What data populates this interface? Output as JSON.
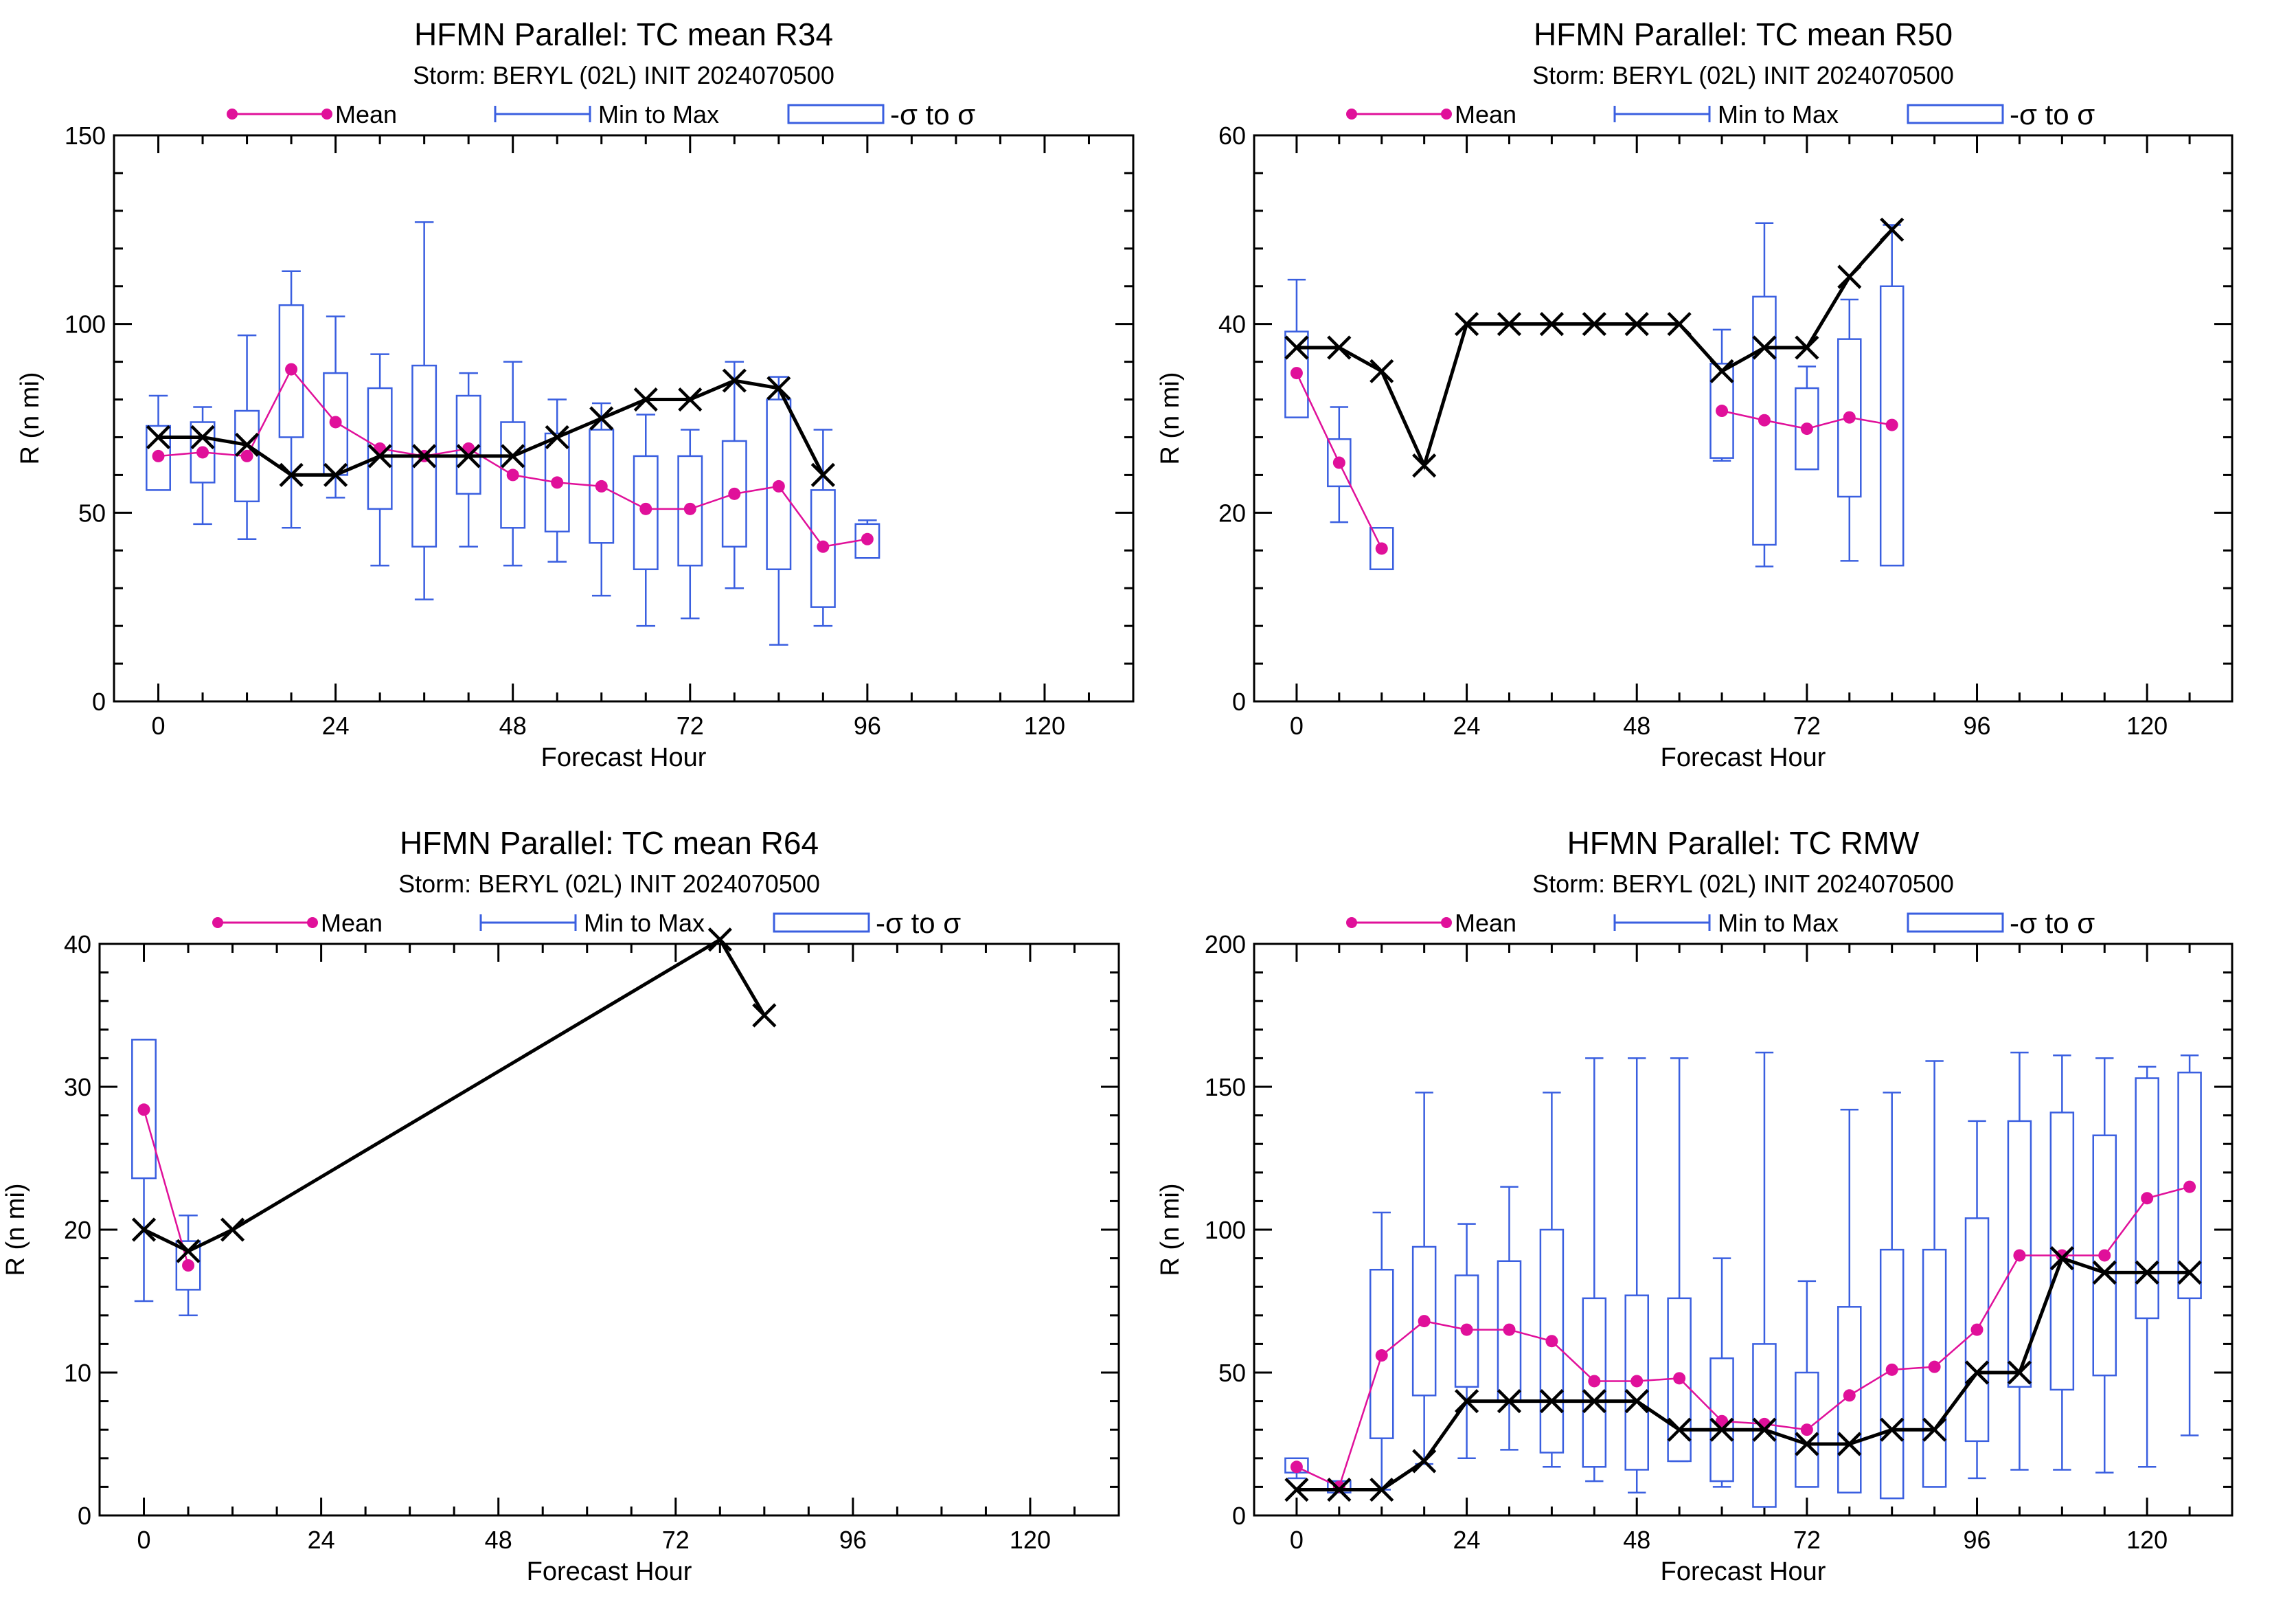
{
  "legend": {
    "mean": "Mean",
    "range": "Min to Max",
    "sigma": "-σ to σ"
  },
  "colors": {
    "mean": "#e0109a",
    "range": "#3a5fe0",
    "track": "#000000",
    "axis": "#000000"
  },
  "chart_data": [
    {
      "type": "box",
      "title": "HFMN Parallel: TC mean R34",
      "subtitle": "Storm: BERYL (02L) INIT 2024070500",
      "xlabel": "Forecast Hour",
      "ylabel": "R (n mi)",
      "xlim": [
        -6,
        132
      ],
      "ylim": [
        0,
        150
      ],
      "xticks": [
        0,
        24,
        48,
        72,
        96,
        120
      ],
      "yticks": [
        0,
        50,
        100,
        150
      ],
      "mean": {
        "x": [
          0,
          6,
          12,
          18,
          24,
          30,
          36,
          42,
          48,
          54,
          60,
          66,
          72,
          78,
          84,
          90,
          96
        ],
        "y": [
          65,
          66,
          65,
          88,
          74,
          67,
          65,
          67,
          60,
          58,
          57,
          51,
          51,
          55,
          57,
          41,
          43
        ]
      },
      "boxes": [
        {
          "x": 0,
          "min": 58,
          "max": 81,
          "lo": 56,
          "hi": 73
        },
        {
          "x": 6,
          "min": 47,
          "max": 78,
          "lo": 58,
          "hi": 74
        },
        {
          "x": 12,
          "min": 43,
          "max": 97,
          "lo": 53,
          "hi": 77
        },
        {
          "x": 18,
          "min": 46,
          "max": 114,
          "lo": 70,
          "hi": 105
        },
        {
          "x": 24,
          "min": 54,
          "max": 102,
          "lo": 60,
          "hi": 87
        },
        {
          "x": 30,
          "min": 36,
          "max": 92,
          "lo": 51,
          "hi": 83
        },
        {
          "x": 36,
          "min": 27,
          "max": 127,
          "lo": 41,
          "hi": 89
        },
        {
          "x": 42,
          "min": 41,
          "max": 87,
          "lo": 55,
          "hi": 81
        },
        {
          "x": 48,
          "min": 36,
          "max": 90,
          "lo": 46,
          "hi": 74
        },
        {
          "x": 54,
          "min": 37,
          "max": 80,
          "lo": 45,
          "hi": 71
        },
        {
          "x": 60,
          "min": 28,
          "max": 79,
          "lo": 42,
          "hi": 72
        },
        {
          "x": 66,
          "min": 20,
          "max": 76,
          "lo": 35,
          "hi": 65
        },
        {
          "x": 72,
          "min": 22,
          "max": 72,
          "lo": 36,
          "hi": 65
        },
        {
          "x": 78,
          "min": 30,
          "max": 90,
          "lo": 41,
          "hi": 69
        },
        {
          "x": 84,
          "min": 15,
          "max": 86,
          "lo": 35,
          "hi": 80
        },
        {
          "x": 90,
          "min": 20,
          "max": 72,
          "lo": 25,
          "hi": 56
        },
        {
          "x": 96,
          "min": 38,
          "max": 48,
          "lo": 38,
          "hi": 47
        }
      ],
      "track": {
        "x": [
          0,
          6,
          12,
          18,
          24,
          30,
          36,
          42,
          48,
          54,
          60,
          66,
          72,
          78,
          84,
          90
        ],
        "y": [
          70,
          70,
          68,
          60,
          60,
          65,
          65,
          65,
          65,
          70,
          75,
          80,
          80,
          85,
          83,
          60
        ]
      }
    },
    {
      "type": "box",
      "title": "HFMN Parallel: TC mean R50",
      "subtitle": "Storm: BERYL (02L) INIT 2024070500",
      "xlabel": "Forecast Hour",
      "ylabel": "R (n mi)",
      "xlim": [
        -6,
        132
      ],
      "ylim": [
        0,
        60
      ],
      "xticks": [
        0,
        24,
        48,
        72,
        96,
        120
      ],
      "yticks": [
        0,
        20,
        40,
        60
      ],
      "mean": {
        "x": [
          0,
          6,
          12
        ],
        "y": [
          34.8,
          25.3,
          16.2
        ],
        "x2": [
          60,
          66,
          72,
          78,
          84
        ],
        "y2": [
          30.8,
          29.8,
          28.9,
          30.1,
          29.3
        ]
      },
      "boxes": [
        {
          "x": 0,
          "min": 31,
          "max": 44.7,
          "lo": 30.1,
          "hi": 39.2
        },
        {
          "x": 6,
          "min": 19,
          "max": 31.2,
          "lo": 22.8,
          "hi": 27.8
        },
        {
          "x": 12,
          "min": 14.2,
          "max": 18.4,
          "lo": 14.0,
          "hi": 18.4
        },
        {
          "x": 60,
          "min": 25.5,
          "max": 39.4,
          "lo": 25.8,
          "hi": 35.8
        },
        {
          "x": 66,
          "min": 14.3,
          "max": 50.7,
          "lo": 16.6,
          "hi": 42.9
        },
        {
          "x": 72,
          "min": 24.6,
          "max": 35.5,
          "lo": 24.6,
          "hi": 33.2
        },
        {
          "x": 78,
          "min": 14.9,
          "max": 42.6,
          "lo": 21.7,
          "hi": 38.4
        },
        {
          "x": 84,
          "min": 19.2,
          "max": 50.5,
          "lo": 14.4,
          "hi": 44.0
        }
      ],
      "track": {
        "x": [
          0,
          6,
          12,
          18,
          24,
          30,
          36,
          42,
          48,
          54,
          60,
          66,
          72,
          78,
          84
        ],
        "y": [
          37.5,
          37.5,
          35,
          25,
          40,
          40,
          40,
          40,
          40,
          40,
          35,
          37.5,
          37.5,
          45,
          50
        ]
      }
    },
    {
      "type": "box",
      "title": "HFMN Parallel: TC mean R64",
      "subtitle": "Storm: BERYL (02L) INIT 2024070500",
      "xlabel": "Forecast Hour",
      "ylabel": "R (n mi)",
      "xlim": [
        -6,
        132
      ],
      "ylim": [
        0,
        40
      ],
      "xticks": [
        0,
        24,
        48,
        72,
        96,
        120
      ],
      "yticks": [
        0,
        10,
        20,
        30,
        40
      ],
      "mean": {
        "x": [
          0,
          6
        ],
        "y": [
          28.4,
          17.5
        ]
      },
      "boxes": [
        {
          "x": 0,
          "min": 15,
          "max": 33.3,
          "lo": 23.6,
          "hi": 33.3
        },
        {
          "x": 6,
          "min": 14,
          "max": 21,
          "lo": 15.8,
          "hi": 19.2
        }
      ],
      "track": {
        "x": [
          0,
          6,
          12,
          78,
          84
        ],
        "y": [
          20,
          18.5,
          20,
          40.3,
          35
        ]
      }
    },
    {
      "type": "box",
      "title": "HFMN Parallel: TC RMW",
      "subtitle": "Storm: BERYL (02L) INIT 2024070500",
      "xlabel": "Forecast Hour",
      "ylabel": "R (n mi)",
      "xlim": [
        -6,
        132
      ],
      "ylim": [
        0,
        200
      ],
      "xticks": [
        0,
        24,
        48,
        72,
        96,
        120
      ],
      "yticks": [
        0,
        50,
        100,
        150,
        200
      ],
      "mean": {
        "x": [
          0,
          6,
          12,
          18,
          24,
          30,
          36,
          42,
          48,
          54,
          60,
          66,
          72,
          78,
          84,
          90,
          96,
          102,
          108,
          114,
          120,
          126
        ],
        "y": [
          17,
          10,
          56,
          68,
          65,
          65,
          61,
          47,
          47,
          48,
          33,
          32,
          30,
          42,
          51,
          52,
          65,
          91,
          91,
          91,
          111,
          115
        ]
      },
      "boxes": [
        {
          "x": 0,
          "min": 13,
          "max": 20,
          "lo": 15,
          "hi": 20
        },
        {
          "x": 6,
          "min": 8,
          "max": 12,
          "lo": 8,
          "hi": 12
        },
        {
          "x": 12,
          "min": 9,
          "max": 106,
          "lo": 27,
          "hi": 86
        },
        {
          "x": 18,
          "min": 18,
          "max": 148,
          "lo": 42,
          "hi": 94
        },
        {
          "x": 24,
          "min": 20,
          "max": 102,
          "lo": 45,
          "hi": 84
        },
        {
          "x": 30,
          "min": 23,
          "max": 115,
          "lo": 40,
          "hi": 89
        },
        {
          "x": 36,
          "min": 17,
          "max": 148,
          "lo": 22,
          "hi": 100
        },
        {
          "x": 42,
          "min": 12,
          "max": 160,
          "lo": 17,
          "hi": 76
        },
        {
          "x": 48,
          "min": 8,
          "max": 160,
          "lo": 16,
          "hi": 77
        },
        {
          "x": 54,
          "min": 19,
          "max": 160,
          "lo": 19,
          "hi": 76
        },
        {
          "x": 60,
          "min": 10,
          "max": 90,
          "lo": 12,
          "hi": 55
        },
        {
          "x": 66,
          "min": 4,
          "max": 162,
          "lo": 3,
          "hi": 60
        },
        {
          "x": 72,
          "min": 10,
          "max": 82,
          "lo": 10,
          "hi": 50
        },
        {
          "x": 78,
          "min": 8,
          "max": 142,
          "lo": 8,
          "hi": 73
        },
        {
          "x": 84,
          "min": 6,
          "max": 148,
          "lo": 6,
          "hi": 93
        },
        {
          "x": 90,
          "min": 10,
          "max": 159,
          "lo": 10,
          "hi": 93
        },
        {
          "x": 96,
          "min": 13,
          "max": 138,
          "lo": 26,
          "hi": 104
        },
        {
          "x": 102,
          "min": 16,
          "max": 162,
          "lo": 45,
          "hi": 138
        },
        {
          "x": 108,
          "min": 16,
          "max": 161,
          "lo": 44,
          "hi": 141
        },
        {
          "x": 114,
          "min": 15,
          "max": 160,
          "lo": 49,
          "hi": 133
        },
        {
          "x": 120,
          "min": 17,
          "max": 157,
          "lo": 69,
          "hi": 153
        },
        {
          "x": 126,
          "min": 28,
          "max": 161,
          "lo": 76,
          "hi": 155
        }
      ],
      "track": {
        "x": [
          0,
          6,
          12,
          18,
          24,
          30,
          36,
          42,
          48,
          54,
          60,
          66,
          72,
          78,
          84,
          90,
          96,
          102,
          108,
          114,
          120,
          126
        ],
        "y": [
          9,
          9,
          9,
          19,
          40,
          40,
          40,
          40,
          40,
          30,
          30,
          30,
          25,
          25,
          30,
          30,
          50,
          50,
          90,
          85,
          85,
          85
        ]
      }
    }
  ]
}
